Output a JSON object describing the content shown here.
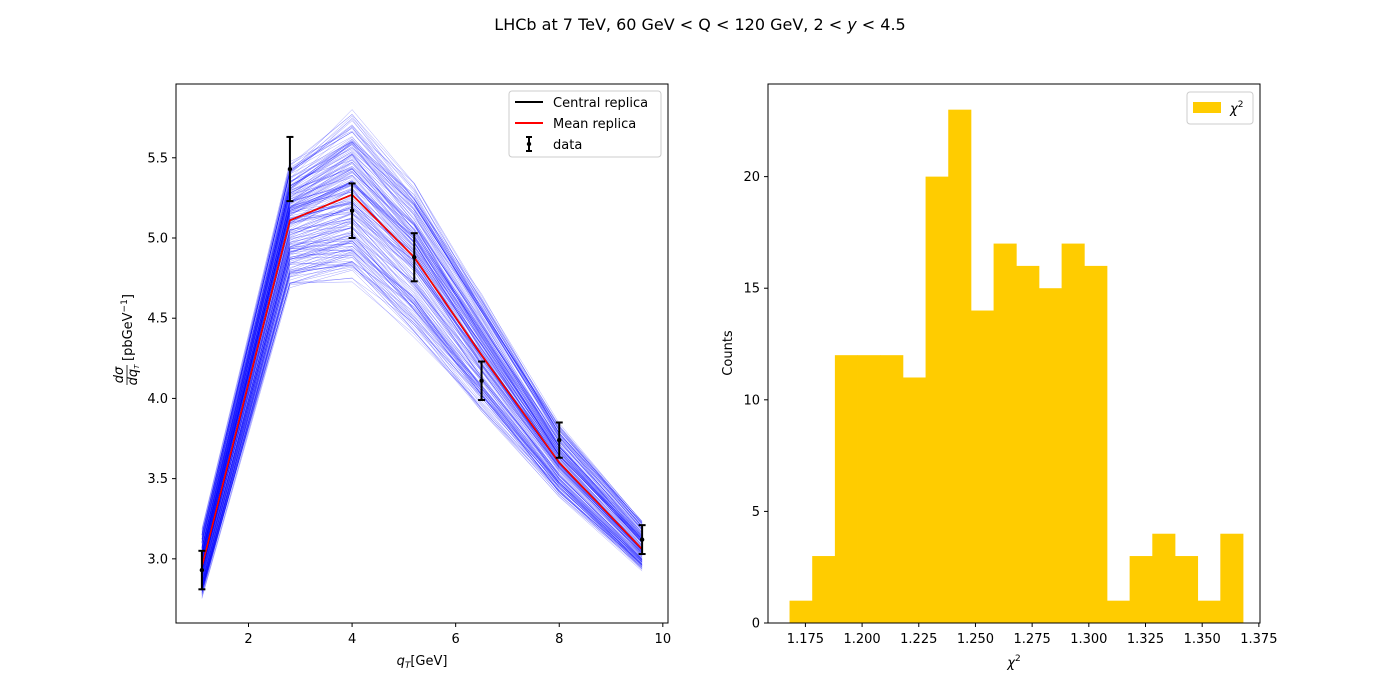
{
  "figure": {
    "suptitle": "LHCb at 7 TeV, 60 GeV < Q < 120 GeV, 2 < y < 4.5"
  },
  "colors": {
    "replica": "#0000ff",
    "central": "#000000",
    "mean": "#ff0000",
    "data": "#000000",
    "hist": "#ffcc00"
  },
  "chart_data": [
    {
      "type": "line",
      "xlabel": "q_T [GeV]",
      "ylabel": "dσ/dq_T [pb GeV^-1]",
      "xlim": [
        0.6,
        10.1
      ],
      "ylim": [
        2.6,
        5.96
      ],
      "xticks": [
        2,
        4,
        6,
        8,
        10
      ],
      "yticks": [
        3.0,
        3.5,
        4.0,
        4.5,
        5.0,
        5.5
      ],
      "legend_position": "top-right",
      "legend": [
        "Central replica",
        "Mean replica",
        "data"
      ],
      "x": [
        1.1,
        2.8,
        4.0,
        5.2,
        6.5,
        8.0,
        9.6
      ],
      "series": [
        {
          "name": "Central replica",
          "values": [
            2.95,
            5.11,
            5.27,
            4.88,
            4.27,
            3.6,
            3.06
          ]
        },
        {
          "name": "Mean replica",
          "values": [
            2.95,
            5.11,
            5.27,
            4.88,
            4.27,
            3.6,
            3.06
          ]
        }
      ],
      "replica_band": {
        "count": 200,
        "lower": [
          2.74,
          4.66,
          4.69,
          4.33,
          3.88,
          3.36,
          2.91
        ],
        "upper": [
          3.2,
          5.5,
          5.83,
          5.37,
          4.69,
          3.86,
          3.25
        ]
      },
      "data": {
        "name": "data",
        "y": [
          2.93,
          5.43,
          5.17,
          4.88,
          4.11,
          3.74,
          3.12
        ],
        "yerr": [
          0.12,
          0.2,
          0.17,
          0.15,
          0.12,
          0.11,
          0.09
        ]
      }
    },
    {
      "type": "bar",
      "title": "",
      "xlabel": "χ²",
      "ylabel": "Counts",
      "xlim": [
        1.1585,
        1.3755
      ],
      "ylim": [
        0,
        24.15
      ],
      "xticks": [
        1.175,
        1.2,
        1.225,
        1.25,
        1.275,
        1.3,
        1.325,
        1.35,
        1.375
      ],
      "xtick_labels": [
        "1.175",
        "1.200",
        "1.225",
        "1.250",
        "1.275",
        "1.300",
        "1.325",
        "1.350",
        "1.375"
      ],
      "yticks": [
        0,
        5,
        10,
        15,
        20
      ],
      "legend_position": "top-right",
      "legend": [
        "χ²"
      ],
      "bin_edges": [
        1.168,
        1.178,
        1.188,
        1.198,
        1.208,
        1.218,
        1.228,
        1.238,
        1.248,
        1.258,
        1.268,
        1.278,
        1.288,
        1.298,
        1.308,
        1.318,
        1.328,
        1.338,
        1.348,
        1.358,
        1.368
      ],
      "values": [
        1,
        3,
        12,
        12,
        12,
        11,
        20,
        23,
        14,
        17,
        16,
        15,
        17,
        16,
        1,
        3,
        4,
        3,
        1,
        4
      ]
    }
  ]
}
